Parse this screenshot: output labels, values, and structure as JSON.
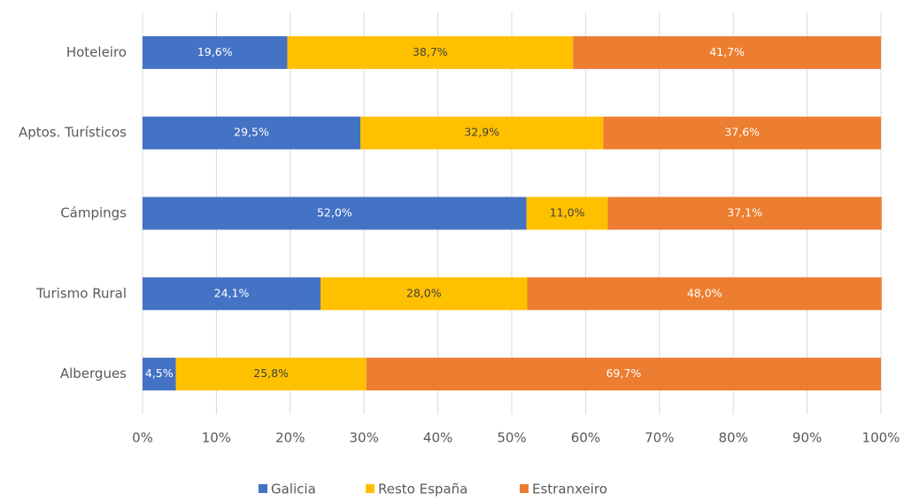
{
  "chart_data": {
    "type": "stacked-bar-horizontal",
    "categories": [
      "Hoteleiro",
      "Aptos. Turísticos",
      "Cámpings",
      "Turismo Rural",
      "Albergues"
    ],
    "series": [
      {
        "name": "Galicia",
        "color": "#4472c4",
        "label_color": "#ffffff",
        "values": [
          19.6,
          29.5,
          52.0,
          24.1,
          4.5
        ],
        "value_labels": [
          "19,6%",
          "29,5%",
          "52,0%",
          "24,1%",
          "4,5%"
        ]
      },
      {
        "name": "Resto España",
        "color": "#ffc000",
        "label_color": "#404040",
        "values": [
          38.7,
          32.9,
          11.0,
          28.0,
          25.8
        ],
        "value_labels": [
          "38,7%",
          "32,9%",
          "11,0%",
          "28,0%",
          "25,8%"
        ]
      },
      {
        "name": "Estranxeiro",
        "color": "#ed7d31",
        "label_color": "#ffffff",
        "values": [
          41.7,
          37.6,
          37.1,
          48.0,
          69.7
        ],
        "value_labels": [
          "41,7%",
          "37,6%",
          "37,1%",
          "48,0%",
          "69,7%"
        ]
      }
    ],
    "xlim": [
      0,
      100
    ],
    "xticks": [
      {
        "value": 0,
        "label": "0%"
      },
      {
        "value": 10,
        "label": "10%"
      },
      {
        "value": 20,
        "label": "20%"
      },
      {
        "value": 30,
        "label": "30%"
      },
      {
        "value": 40,
        "label": "40%"
      },
      {
        "value": 50,
        "label": "50%"
      },
      {
        "value": 60,
        "label": "60%"
      },
      {
        "value": 70,
        "label": "70%"
      },
      {
        "value": 80,
        "label": "80%"
      },
      {
        "value": 90,
        "label": "90%"
      },
      {
        "value": 100,
        "label": "100%"
      }
    ],
    "grid": true,
    "legend": "bottom"
  }
}
